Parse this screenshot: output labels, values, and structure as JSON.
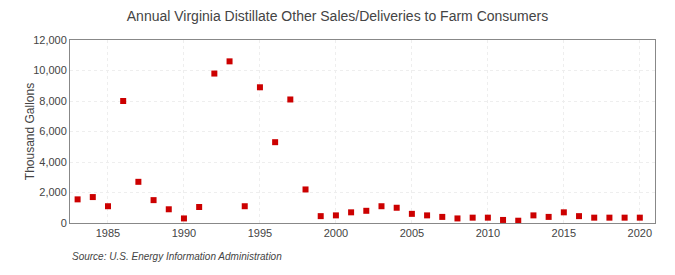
{
  "chart_data": {
    "type": "scatter",
    "title": "Annual Virginia Distillate Other Sales/Deliveries to Farm Consumers",
    "ylabel": "Thousand Gallons",
    "annotations": [
      "Source: U.S. Energy Information Administration"
    ],
    "x": [
      1983,
      1984,
      1985,
      1986,
      1987,
      1988,
      1989,
      1990,
      1991,
      1992,
      1993,
      1994,
      1995,
      1996,
      1997,
      1998,
      1999,
      2000,
      2001,
      2002,
      2003,
      2004,
      2005,
      2006,
      2007,
      2008,
      2009,
      2010,
      2011,
      2012,
      2013,
      2014,
      2015,
      2016,
      2017,
      2018,
      2019,
      2020
    ],
    "values": [
      1550,
      1700,
      1100,
      8000,
      2700,
      1500,
      900,
      300,
      1050,
      9800,
      10600,
      1100,
      8900,
      5300,
      8100,
      2200,
      450,
      500,
      700,
      800,
      1100,
      1000,
      600,
      500,
      400,
      300,
      350,
      350,
      200,
      150,
      500,
      400,
      700,
      450,
      350,
      350,
      350,
      350
    ],
    "color": "#cc0000",
    "marker": "square",
    "xlim": [
      1982.5,
      2021
    ],
    "xticks": [
      1985,
      1990,
      1995,
      2000,
      2005,
      2010,
      2015,
      2020
    ],
    "ylim": [
      0,
      12000
    ],
    "yticks": [
      0,
      {
        "value": 2000,
        "label": "2,000"
      },
      {
        "value": 4000,
        "label": "4,000"
      },
      {
        "value": 6000,
        "label": "6,000"
      },
      {
        "value": 8000,
        "label": "8,000"
      },
      {
        "value": 10000,
        "label": "10,000"
      },
      {
        "value": 12000,
        "label": "12,000"
      }
    ],
    "grid": true
  }
}
